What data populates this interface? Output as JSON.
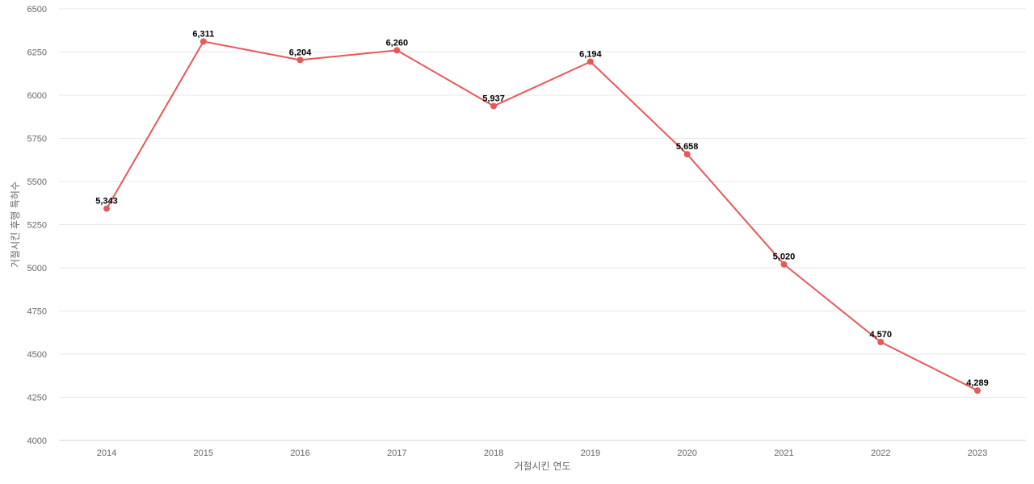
{
  "chart_data": {
    "type": "line",
    "title": "",
    "xlabel": "거절시킨 연도",
    "ylabel": "거절시킨 후행 특허수",
    "categories": [
      "2014",
      "2015",
      "2016",
      "2017",
      "2018",
      "2019",
      "2020",
      "2021",
      "2022",
      "2023"
    ],
    "series": [
      {
        "values": [
          5343,
          6311,
          6204,
          6260,
          5937,
          6194,
          5658,
          5020,
          4570,
          4289
        ],
        "labels": [
          "5,343",
          "6,311",
          "6,204",
          "6,260",
          "5,937",
          "6,194",
          "5,658",
          "5,020",
          "4,570",
          "4,289"
        ],
        "color": "#e8575a"
      }
    ],
    "ylim": [
      4000,
      6500
    ],
    "yticks": [
      "4000",
      "4250",
      "4500",
      "4750",
      "5000",
      "5250",
      "5500",
      "5750",
      "6000",
      "6250",
      "6500"
    ],
    "grid": true,
    "legend": "none"
  }
}
